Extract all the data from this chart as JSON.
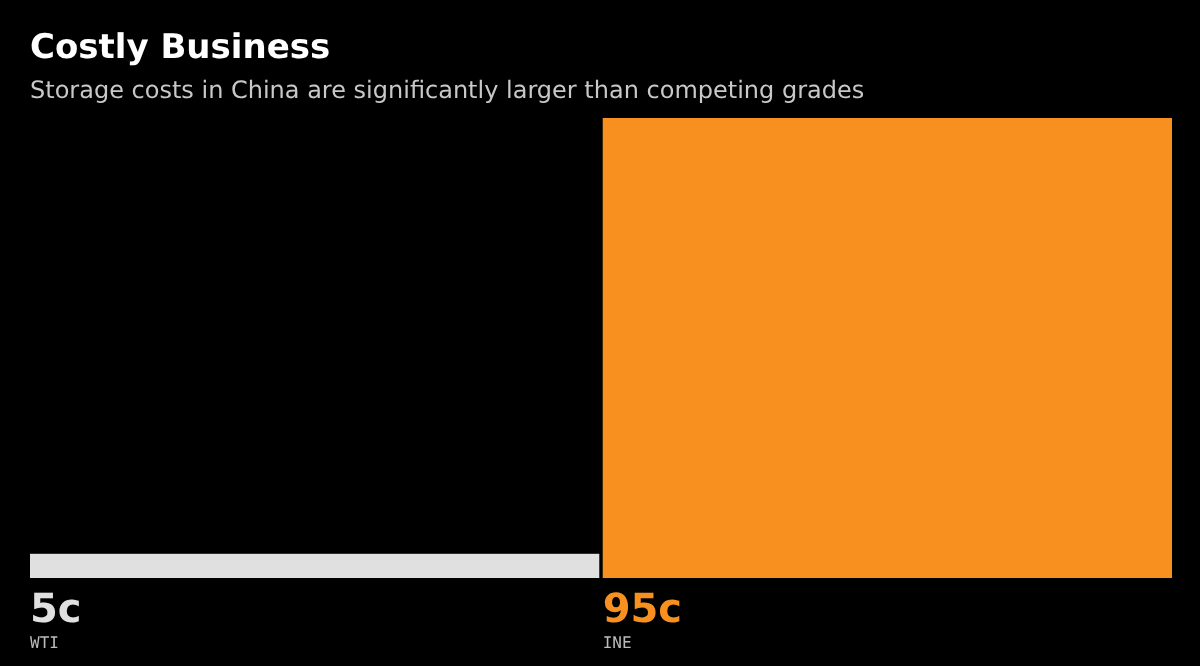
{
  "chart_data": {
    "type": "bar",
    "title": "Costly Business",
    "subtitle": "Storage costs in China are significantly larger than competing grades",
    "categories": [
      "WTI",
      "INE"
    ],
    "values": [
      5,
      95
    ],
    "colors": [
      "#e0e0e0",
      "#f7901e"
    ],
    "value_labels": [
      "5c",
      "95c"
    ]
  }
}
